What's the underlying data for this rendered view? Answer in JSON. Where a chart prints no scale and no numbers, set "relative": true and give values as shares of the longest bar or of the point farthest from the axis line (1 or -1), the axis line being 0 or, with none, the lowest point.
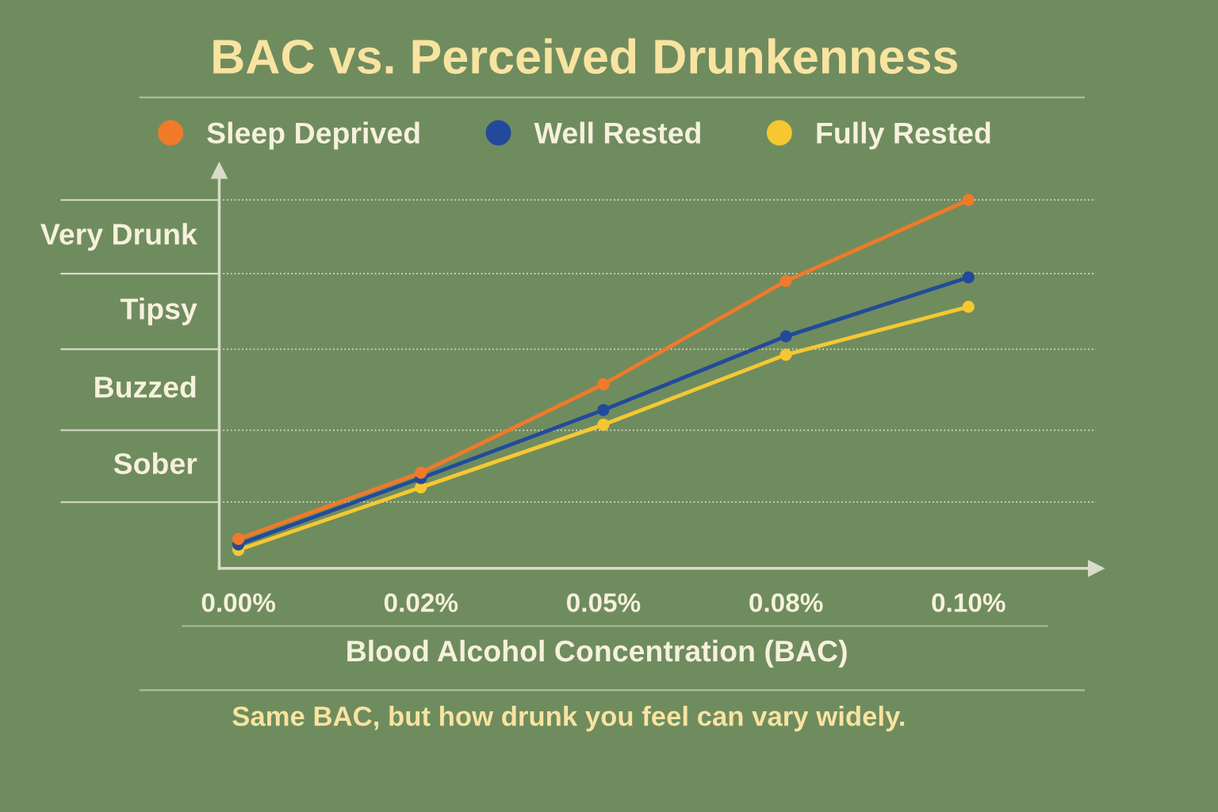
{
  "chart_data": {
    "type": "line",
    "title": "BAC vs. Perceived Drunkenness",
    "xlabel": "Blood Alcohol Concentration (BAC)",
    "annotations": [
      "Same BAC, but how drunk you feel can vary widely.",
      "Sober",
      "Buzzed",
      "Tipsy",
      "Very Drunk"
    ],
    "categories": [
      "0.00%",
      "0.02%",
      "0.05%",
      "0.08%",
      "0.10%"
    ],
    "relative": true,
    "series": [
      {
        "name": "Sleep Deprived",
        "color": "#f07a2a",
        "values": [
          0.08,
          0.26,
          0.5,
          0.78,
          1.0
        ]
      },
      {
        "name": "Well Rested",
        "color": "#234a9a",
        "values": [
          0.065,
          0.245,
          0.43,
          0.63,
          0.79
        ]
      },
      {
        "name": "Fully Rested",
        "color": "#f5c832",
        "values": [
          0.05,
          0.22,
          0.39,
          0.58,
          0.71
        ]
      }
    ],
    "ref_lines": [
      {
        "axis": "y",
        "value": 0.18,
        "line_style": "dotted"
      },
      {
        "axis": "y",
        "value": 0.375,
        "line_style": "dotted"
      },
      {
        "axis": "y",
        "value": 0.595,
        "line_style": "dotted"
      },
      {
        "axis": "y",
        "value": 0.8,
        "line_style": "dotted"
      },
      {
        "axis": "y",
        "value": 1.0,
        "line_style": "dotted"
      }
    ],
    "marker": "circle",
    "line_style": "solid",
    "legend": "top",
    "grid": false
  }
}
